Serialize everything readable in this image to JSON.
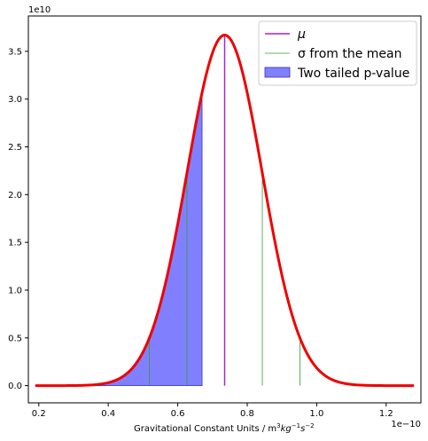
{
  "chart_data": {
    "type": "line",
    "xlabel": "Gravitational Constant Units / m",
    "xlabel_math": {
      "kg": "kg",
      "s": "s",
      "exp_m": "3",
      "exp_kg": "−1",
      "exp_s": "−2"
    },
    "x_offset_text": "1e−10",
    "y_offset_text": "1e10",
    "xlim": [
      0.17,
      1.3
    ],
    "ylim": [
      -0.18,
      3.87
    ],
    "x_ticks": [
      0.2,
      0.4,
      0.6,
      0.8,
      1.0,
      1.2
    ],
    "x_tick_labels": [
      "0.2",
      "0.4",
      "0.6",
      "0.8",
      "1.0",
      "1.2"
    ],
    "y_ticks": [
      0.0,
      0.5,
      1.0,
      1.5,
      2.0,
      2.5,
      3.0,
      3.5
    ],
    "y_tick_labels": [
      "0.0",
      "0.5",
      "1.0",
      "1.5",
      "2.0",
      "2.5",
      "3.0",
      "3.5"
    ],
    "grid": false,
    "legend_position": "top-right",
    "mean": 0.735,
    "sigma": 0.1085,
    "peak": 3.67,
    "curve_range": [
      0.19,
      1.28
    ],
    "sigma_lines_x": [
      0.518,
      0.6265,
      0.8435,
      0.952
    ],
    "pvalue_fill_range": [
      0.19,
      0.67
    ],
    "series": [
      {
        "name": "μ",
        "type": "vline",
        "color": "#aa22cc",
        "x": 0.735
      },
      {
        "name": "σ from the mean",
        "type": "vlines",
        "color": "#2ca02c"
      },
      {
        "name": "Two tailed p-value",
        "type": "fill",
        "color": "#8080ff"
      },
      {
        "name": "",
        "type": "curve",
        "color": "#ee0000"
      }
    ]
  }
}
